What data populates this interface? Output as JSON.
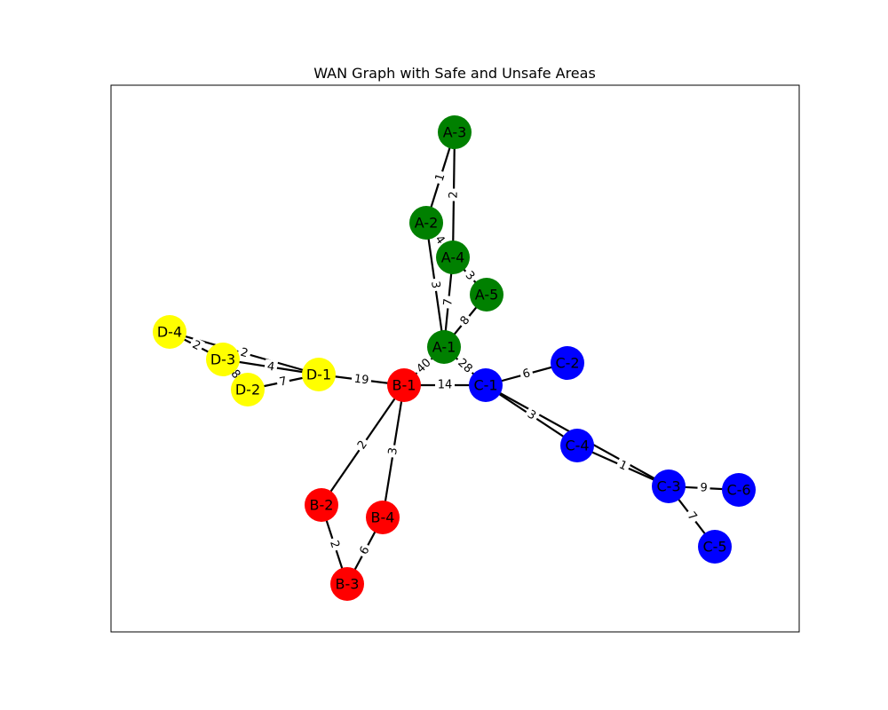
{
  "title": "WAN Graph with Safe and Unsafe Areas",
  "colors": {
    "A": "#008000",
    "B": "#ff0000",
    "C": "#0000ff",
    "D": "#ffff00"
  },
  "nodes": [
    {
      "id": "A-1",
      "group": "A"
    },
    {
      "id": "A-2",
      "group": "A"
    },
    {
      "id": "A-3",
      "group": "A"
    },
    {
      "id": "A-4",
      "group": "A"
    },
    {
      "id": "A-5",
      "group": "A"
    },
    {
      "id": "B-1",
      "group": "B"
    },
    {
      "id": "B-2",
      "group": "B"
    },
    {
      "id": "B-3",
      "group": "B"
    },
    {
      "id": "B-4",
      "group": "B"
    },
    {
      "id": "C-1",
      "group": "C"
    },
    {
      "id": "C-2",
      "group": "C"
    },
    {
      "id": "C-3",
      "group": "C"
    },
    {
      "id": "C-4",
      "group": "C"
    },
    {
      "id": "C-5",
      "group": "C"
    },
    {
      "id": "C-6",
      "group": "C"
    },
    {
      "id": "D-1",
      "group": "D"
    },
    {
      "id": "D-2",
      "group": "D"
    },
    {
      "id": "D-3",
      "group": "D"
    },
    {
      "id": "D-4",
      "group": "D"
    }
  ],
  "edges": [
    {
      "source": "A-2",
      "target": "A-3",
      "weight": "1"
    },
    {
      "source": "A-3",
      "target": "A-4",
      "weight": "2"
    },
    {
      "source": "A-2",
      "target": "A-4",
      "weight": "4"
    },
    {
      "source": "A-2",
      "target": "A-1",
      "weight": "3"
    },
    {
      "source": "A-4",
      "target": "A-1",
      "weight": "7"
    },
    {
      "source": "A-4",
      "target": "A-5",
      "weight": "3"
    },
    {
      "source": "A-5",
      "target": "A-1",
      "weight": "8"
    },
    {
      "source": "A-1",
      "target": "B-1",
      "weight": "40"
    },
    {
      "source": "A-1",
      "target": "C-1",
      "weight": "28"
    },
    {
      "source": "B-1",
      "target": "C-1",
      "weight": "14"
    },
    {
      "source": "D-1",
      "target": "B-1",
      "weight": "19"
    },
    {
      "source": "B-1",
      "target": "B-2",
      "weight": "2"
    },
    {
      "source": "B-1",
      "target": "B-4",
      "weight": "3"
    },
    {
      "source": "B-2",
      "target": "B-3",
      "weight": "2"
    },
    {
      "source": "B-4",
      "target": "B-3",
      "weight": "6"
    },
    {
      "source": "C-1",
      "target": "C-2",
      "weight": "6"
    },
    {
      "source": "C-1",
      "target": "C-4",
      "weight": "3"
    },
    {
      "source": "C-1",
      "target": "C-3",
      "weight": ""
    },
    {
      "source": "C-4",
      "target": "C-3",
      "weight": "1"
    },
    {
      "source": "C-3",
      "target": "C-6",
      "weight": "9"
    },
    {
      "source": "C-3",
      "target": "C-5",
      "weight": "7"
    },
    {
      "source": "D-4",
      "target": "D-3",
      "weight": "2"
    },
    {
      "source": "D-4",
      "target": "D-1",
      "weight": "2"
    },
    {
      "source": "D-3",
      "target": "D-1",
      "weight": "4"
    },
    {
      "source": "D-3",
      "target": "D-2",
      "weight": "8"
    },
    {
      "source": "D-2",
      "target": "D-1",
      "weight": "7"
    }
  ]
}
